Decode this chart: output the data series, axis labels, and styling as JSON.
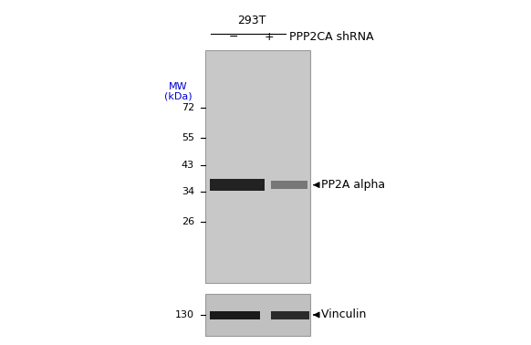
{
  "bg_color": "#ffffff",
  "gel_color": "#c8c8c8",
  "gel2_color": "#c0c0c0",
  "fig_width": 5.82,
  "fig_height": 3.78,
  "cell_line": "293T",
  "minus_label": "−",
  "plus_label": "+",
  "shrna_label": "PPP2CA shRNA",
  "mw_label_line1": "MW",
  "mw_label_line2": "(kDa)",
  "mw_color": "#0000cc",
  "mw_markers_main": [
    {
      "label": "72",
      "kda": 72
    },
    {
      "label": "55",
      "kda": 55
    },
    {
      "label": "43",
      "kda": 43
    },
    {
      "label": "34",
      "kda": 34
    },
    {
      "label": "26",
      "kda": 26
    }
  ],
  "mw_marker_vinculin": {
    "label": "130",
    "kda": 130
  },
  "band_pp2a_kda": 36,
  "band_pp2a_label": "← PP2A alpha",
  "band_vinculin_label": "← Vinculin",
  "font_size_title": 9,
  "font_size_header": 9,
  "font_size_mw_label": 8,
  "font_size_mw_tick": 8,
  "font_size_band": 9
}
